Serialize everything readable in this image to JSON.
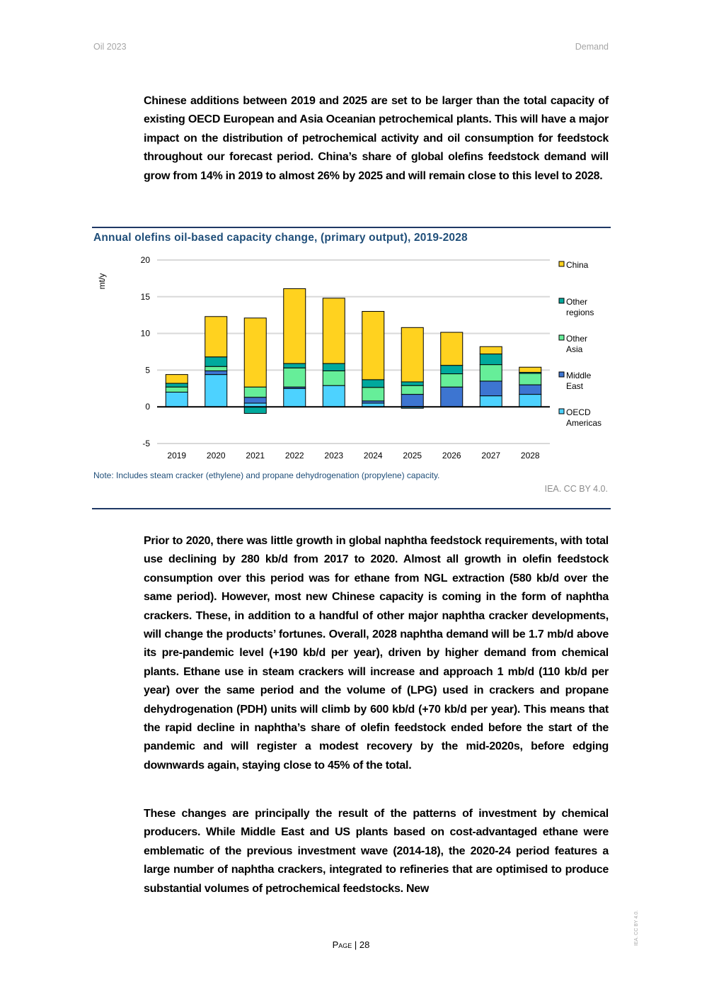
{
  "header": {
    "left": "Oil 2023",
    "right": "Demand"
  },
  "paragraphs": [
    "Chinese additions between 2019 and 2025 are set to be larger than the total capacity of existing OECD European and Asia Oceanian petrochemical plants. This will have a major impact on the distribution of petrochemical activity and oil consumption for feedstock throughout our forecast period. China’s share of global olefins feedstock demand will grow from 14% in 2019 to almost 26% by 2025 and will remain close to this level to 2028.",
    "Prior to 2020, there was little growth in global naphtha feedstock requirements, with total use declining by 280 kb/d from 2017 to 2020. Almost all growth in olefin feedstock consumption over this period was for ethane from NGL extraction (580 kb/d over the same period). However, most new Chinese capacity is coming in the form of naphtha crackers. These, in addition to a handful of other major naphtha cracker developments, will change the products’ fortunes. Overall, 2028 naphtha demand will be 1.7 mb/d above its pre-pandemic level (+190 kb/d per year), driven by higher demand from chemical plants. Ethane use in steam crackers will increase and approach 1 mb/d (110 kb/d per year) over the same period and the volume of (LPG) used in crackers and propane dehydrogenation (PDH) units will climb by 600 kb/d (+70 kb/d per year). This means that the rapid decline in naphtha’s share of olefin feedstock ended before the start of the pandemic and will register a modest recovery by the mid-2020s, before edging downwards again, staying close to 45% of the total.",
    "These changes are principally the result of the patterns of investment by chemical producers. While Middle East and US plants based on cost-advantaged ethane were emblematic of the previous investment wave (2014-18), the 2020-24 period features a large number of naphtha crackers, integrated to refineries that are optimised to produce substantial volumes of petrochemical feedstocks. New"
  ],
  "chart_data": {
    "type": "bar",
    "stacked": true,
    "title": "Annual olefins oil-based capacity change, (primary output), 2019-2028",
    "ylabel": "mt/y",
    "xlabel": "",
    "ylim": [
      -5,
      20
    ],
    "yticks": [
      -5,
      0,
      5,
      10,
      15,
      20
    ],
    "grid": true,
    "legend_position": "right",
    "categories": [
      "2019",
      "2020",
      "2021",
      "2022",
      "2023",
      "2024",
      "2025",
      "2026",
      "2027",
      "2028"
    ],
    "series": [
      {
        "name": "OECD Americas",
        "label_lines": [
          "OECD",
          "Americas"
        ],
        "color": "#4dd2ff",
        "values": [
          2.0,
          4.4,
          0.5,
          2.5,
          2.9,
          0.5,
          -0.2,
          0,
          1.5,
          1.7
        ]
      },
      {
        "name": "Middle East",
        "label_lines": [
          "Middle",
          "East"
        ],
        "color": "#3d75d1",
        "values": [
          0,
          0.5,
          0.8,
          0.2,
          0,
          0.3,
          1.7,
          2.7,
          2.0,
          1.3
        ]
      },
      {
        "name": "Other Asia",
        "label_lines": [
          "Other",
          "Asia"
        ],
        "color": "#66ee99",
        "values": [
          0.7,
          0.6,
          1.4,
          2.6,
          2.0,
          1.85,
          1.2,
          1.8,
          2.25,
          1.55
        ]
      },
      {
        "name": "Other regions",
        "label_lines": [
          "Other",
          "regions"
        ],
        "color": "#00a99d",
        "values": [
          0.5,
          1.3,
          -0.9,
          0.6,
          1.0,
          1.05,
          0.5,
          1.15,
          1.45,
          0.15
        ]
      },
      {
        "name": "China",
        "label_lines": [
          "China"
        ],
        "color": "#ffd21f",
        "values": [
          1.2,
          5.5,
          9.4,
          10.2,
          8.9,
          9.3,
          7.4,
          4.5,
          1.0,
          0.7
        ]
      }
    ],
    "note": "Note: Includes steam cracker (ethylene) and propane dehydrogenation (propylene) capacity.",
    "credit": "IEA. CC BY 4.0."
  },
  "footer": {
    "page": "Page | 28",
    "side_credit": "IEA. CC BY 4.0."
  }
}
